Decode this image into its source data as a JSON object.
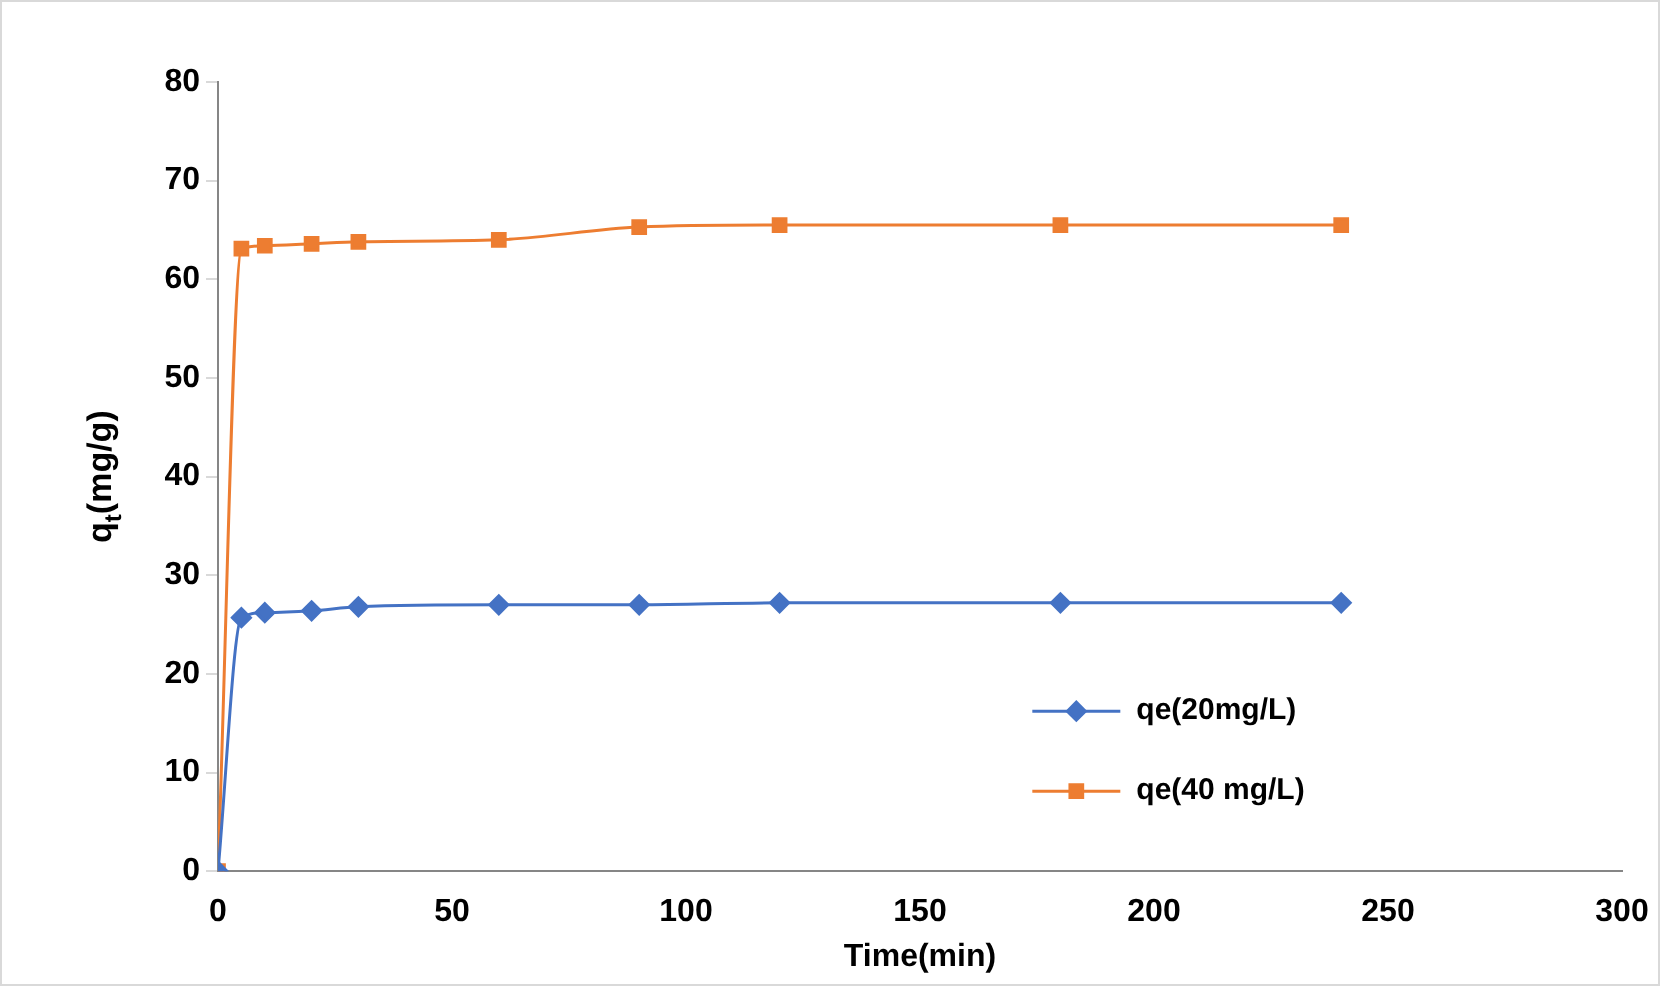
{
  "chart_data": {
    "type": "line",
    "xlabel": "Time(min)",
    "ylabel": "q$_{t}$(mg/g)",
    "x": [
      0,
      5,
      10,
      20,
      30,
      60,
      90,
      120,
      180,
      240
    ],
    "series": [
      {
        "name": "qe(20mg/L)",
        "color": "#4472c4",
        "marker": "diamond",
        "values": [
          0,
          25.7,
          26.2,
          26.4,
          26.8,
          27.0,
          27.0,
          27.2,
          27.2,
          27.2
        ]
      },
      {
        "name": "qe(40 mg/L)",
        "color": "#ed7d31",
        "marker": "square",
        "values": [
          0,
          63.1,
          63.4,
          63.6,
          63.8,
          64.0,
          65.3,
          65.5,
          65.5,
          65.5
        ]
      }
    ],
    "xlim": [
      0,
      300
    ],
    "xticks": [
      0,
      50,
      100,
      150,
      200,
      250,
      300
    ],
    "ylim": [
      0,
      80
    ],
    "yticks": [
      0,
      10,
      20,
      30,
      40,
      50,
      60,
      70,
      80
    ],
    "grid": false,
    "legend": "bottom right"
  }
}
